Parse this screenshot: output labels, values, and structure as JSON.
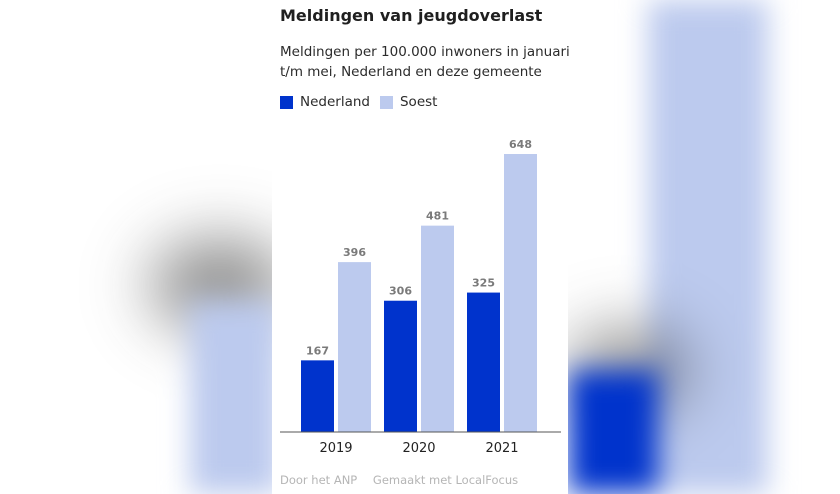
{
  "title": "Meldingen van jeugdoverlast",
  "subtitle": "Meldingen per 100.000 inwoners in januari t/m mei, Nederland en deze gemeente",
  "footer": {
    "source": "Door het ANP",
    "credit": "Gemaakt met LocalFocus"
  },
  "colors": {
    "nederland": "#0033cc",
    "soest": "#bccaee"
  },
  "chart_data": {
    "type": "bar",
    "title": "Meldingen van jeugdoverlast",
    "subtitle": "Meldingen per 100.000 inwoners in januari t/m mei, Nederland en deze gemeente",
    "categories": [
      "2019",
      "2020",
      "2021"
    ],
    "series": [
      {
        "name": "Nederland",
        "values": [
          167,
          306,
          325
        ]
      },
      {
        "name": "Soest",
        "values": [
          396,
          481,
          648
        ]
      }
    ],
    "xlabel": "",
    "ylabel": "",
    "ylim": [
      0,
      648
    ],
    "legend": "top-left",
    "grid": false
  }
}
